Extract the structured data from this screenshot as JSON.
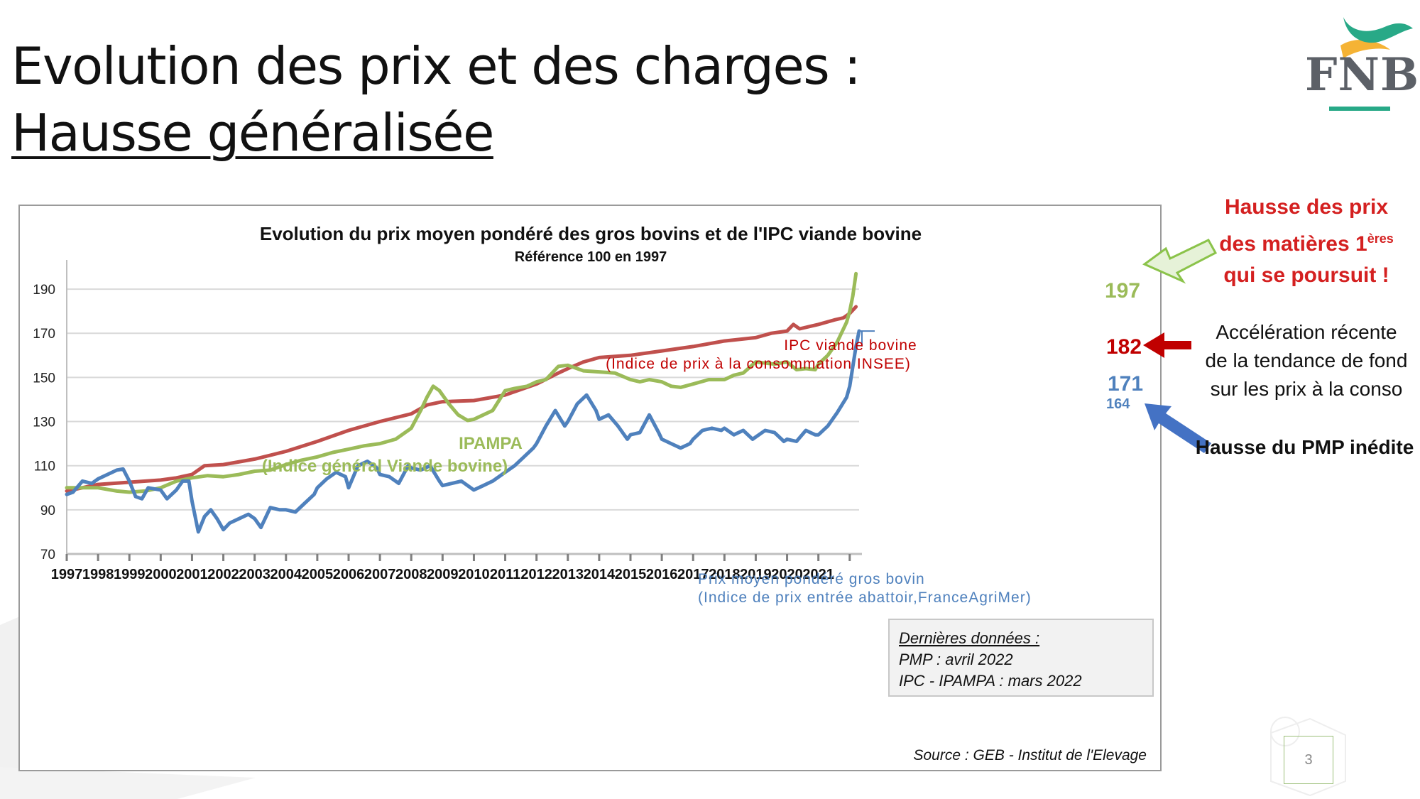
{
  "slide": {
    "title_line1": "Evolution des prix et des charges :",
    "title_line2": "Hausse généralisée",
    "logo_text": "FNB",
    "page_number": "3"
  },
  "annotations": {
    "red_line1": "Hausse des prix",
    "red_line2_prefix": "des matières 1",
    "red_line2_sup": "ères",
    "red_line3": "qui se poursuit !",
    "black_line1": "Accélération récente",
    "black_line2": "de la tendance de fond",
    "black_line3": "sur les prix à la conso",
    "pmp": "Hausse du PMP inédite"
  },
  "colors": {
    "ipc": "#c0504d",
    "ipampa": "#9bbb59",
    "pmp": "#4f81bd",
    "arrow_red": "#c00000",
    "arrow_green_fill": "#e6f2d8",
    "arrow_green_stroke": "#8bc34a",
    "arrow_blue": "#4472c4",
    "annotation_red": "#d42020",
    "logo_green": "#28a987",
    "logo_orange": "#f5b335"
  },
  "chart_data": {
    "type": "line",
    "title": "Evolution du prix moyen pondéré des gros bovins et de l'IPC viande bovine",
    "subtitle": "Référence 100 en 1997",
    "x_tick_labels": [
      "1997",
      "1998",
      "1999",
      "2000",
      "2001",
      "2002",
      "2003",
      "2004",
      "2005",
      "2006",
      "2007",
      "2008",
      "2009",
      "2010",
      "2011",
      "2012",
      "2013",
      "2014",
      "2015",
      "2016",
      "2017",
      "2018",
      "2019",
      "2020",
      "2021"
    ],
    "y_ticks": [
      70,
      90,
      110,
      130,
      150,
      170,
      190
    ],
    "xlim": [
      1997.0,
      2022.3
    ],
    "ylim": [
      70,
      200
    ],
    "grid": true,
    "series": [
      {
        "name": "IPC viande bovine",
        "label_line1": "IPC viande bovine",
        "label_line2": "(Indice de prix à la consommation INSEE)",
        "color": "#c0504d",
        "end_value": "182",
        "points": [
          [
            1997.0,
            98.5
          ],
          [
            1998.0,
            101.5
          ],
          [
            1999.0,
            102.5
          ],
          [
            2000.0,
            103.5
          ],
          [
            2000.5,
            104.5
          ],
          [
            2001.0,
            106
          ],
          [
            2001.4,
            110
          ],
          [
            2002.0,
            110.5
          ],
          [
            2003.0,
            113
          ],
          [
            2004.0,
            116.5
          ],
          [
            2005.0,
            121
          ],
          [
            2006.0,
            126
          ],
          [
            2007.0,
            130
          ],
          [
            2008.0,
            133.5
          ],
          [
            2008.5,
            137.5
          ],
          [
            2009.0,
            139
          ],
          [
            2010.0,
            139.5
          ],
          [
            2011.0,
            142
          ],
          [
            2012.0,
            147
          ],
          [
            2012.7,
            152
          ],
          [
            2013.0,
            154
          ],
          [
            2013.5,
            157
          ],
          [
            2014.0,
            159
          ],
          [
            2015.0,
            160
          ],
          [
            2016.0,
            162
          ],
          [
            2017.0,
            164
          ],
          [
            2018.0,
            166.5
          ],
          [
            2019.0,
            168
          ],
          [
            2019.5,
            170
          ],
          [
            2020.0,
            171
          ],
          [
            2020.2,
            174
          ],
          [
            2020.4,
            172
          ],
          [
            2021.0,
            174
          ],
          [
            2021.5,
            176
          ],
          [
            2021.8,
            177
          ],
          [
            2022.0,
            179
          ],
          [
            2022.2,
            182
          ]
        ]
      },
      {
        "name": "IPAMPA",
        "label_line1": "IPAMPA",
        "label_line2": "(Indice général Viande bovine)",
        "color": "#9bbb59",
        "end_value": "197",
        "points": [
          [
            1997.0,
            100
          ],
          [
            1998.0,
            100
          ],
          [
            1998.6,
            98.5
          ],
          [
            1999.0,
            98
          ],
          [
            1999.5,
            98.5
          ],
          [
            2000.0,
            100
          ],
          [
            2000.5,
            103
          ],
          [
            2001.0,
            104.5
          ],
          [
            2001.5,
            105.5
          ],
          [
            2002.0,
            105
          ],
          [
            2002.5,
            106
          ],
          [
            2003.0,
            107.5
          ],
          [
            2003.5,
            108
          ],
          [
            2004.0,
            110.5
          ],
          [
            2004.5,
            112.5
          ],
          [
            2005.0,
            114
          ],
          [
            2005.5,
            116
          ],
          [
            2006.0,
            117.5
          ],
          [
            2006.5,
            119
          ],
          [
            2007.0,
            120
          ],
          [
            2007.5,
            122
          ],
          [
            2008.0,
            127
          ],
          [
            2008.3,
            135
          ],
          [
            2008.5,
            141
          ],
          [
            2008.7,
            146
          ],
          [
            2008.9,
            144
          ],
          [
            2009.2,
            138
          ],
          [
            2009.5,
            133
          ],
          [
            2009.8,
            130.5
          ],
          [
            2010.0,
            131
          ],
          [
            2010.3,
            133
          ],
          [
            2010.6,
            135
          ],
          [
            2011.0,
            144
          ],
          [
            2011.3,
            145
          ],
          [
            2011.7,
            146
          ],
          [
            2012.0,
            148
          ],
          [
            2012.3,
            149
          ],
          [
            2012.7,
            155
          ],
          [
            2013.0,
            155.5
          ],
          [
            2013.5,
            153
          ],
          [
            2014.0,
            152.5
          ],
          [
            2014.5,
            152
          ],
          [
            2015.0,
            149
          ],
          [
            2015.3,
            148
          ],
          [
            2015.6,
            149
          ],
          [
            2016.0,
            148
          ],
          [
            2016.3,
            146
          ],
          [
            2016.6,
            145.5
          ],
          [
            2017.0,
            147
          ],
          [
            2017.5,
            149
          ],
          [
            2018.0,
            149
          ],
          [
            2018.3,
            151
          ],
          [
            2018.6,
            152
          ],
          [
            2019.0,
            157
          ],
          [
            2019.3,
            156.5
          ],
          [
            2019.6,
            156
          ],
          [
            2020.0,
            157
          ],
          [
            2020.3,
            153.5
          ],
          [
            2020.6,
            154
          ],
          [
            2020.9,
            153.5
          ],
          [
            2021.0,
            156
          ],
          [
            2021.3,
            160
          ],
          [
            2021.6,
            166
          ],
          [
            2021.9,
            175
          ],
          [
            2022.0,
            180
          ],
          [
            2022.1,
            187
          ],
          [
            2022.2,
            197
          ]
        ]
      },
      {
        "name": "Prix moyen pondéré gros bovin",
        "label_line1": "Prix moyen pondéré gros bovin",
        "label_line2": "(Indice de prix entrée abattoir,FranceAgriMer)",
        "color": "#4f81bd",
        "end_value": "171",
        "secondary_value": "164",
        "points": [
          [
            1997.0,
            97
          ],
          [
            1997.2,
            98
          ],
          [
            1997.5,
            103
          ],
          [
            1997.8,
            102
          ],
          [
            1998.0,
            104
          ],
          [
            1998.3,
            106
          ],
          [
            1998.6,
            108
          ],
          [
            1998.8,
            108.5
          ],
          [
            1999.0,
            103
          ],
          [
            1999.2,
            96
          ],
          [
            1999.4,
            95
          ],
          [
            1999.6,
            100
          ],
          [
            2000.0,
            99
          ],
          [
            2000.2,
            95
          ],
          [
            2000.5,
            99
          ],
          [
            2000.7,
            103
          ],
          [
            2000.9,
            103
          ],
          [
            2001.0,
            94
          ],
          [
            2001.2,
            80
          ],
          [
            2001.4,
            87
          ],
          [
            2001.6,
            90
          ],
          [
            2001.8,
            86
          ],
          [
            2002.0,
            81
          ],
          [
            2002.2,
            84
          ],
          [
            2002.5,
            86
          ],
          [
            2002.8,
            88
          ],
          [
            2003.0,
            86
          ],
          [
            2003.2,
            82
          ],
          [
            2003.5,
            91
          ],
          [
            2003.8,
            90
          ],
          [
            2004.0,
            90
          ],
          [
            2004.3,
            89
          ],
          [
            2004.6,
            93
          ],
          [
            2004.9,
            97
          ],
          [
            2005.0,
            100
          ],
          [
            2005.3,
            104
          ],
          [
            2005.6,
            107
          ],
          [
            2005.9,
            105
          ],
          [
            2006.0,
            100
          ],
          [
            2006.3,
            110
          ],
          [
            2006.6,
            112
          ],
          [
            2006.9,
            109
          ],
          [
            2007.0,
            106
          ],
          [
            2007.3,
            105
          ],
          [
            2007.6,
            102
          ],
          [
            2007.9,
            110
          ],
          [
            2008.0,
            109
          ],
          [
            2008.3,
            108
          ],
          [
            2008.6,
            110
          ],
          [
            2008.9,
            103
          ],
          [
            2009.0,
            101
          ],
          [
            2009.3,
            102
          ],
          [
            2009.6,
            103
          ],
          [
            2009.9,
            100
          ],
          [
            2010.0,
            99
          ],
          [
            2010.3,
            101
          ],
          [
            2010.6,
            103
          ],
          [
            2010.9,
            106
          ],
          [
            2011.0,
            107
          ],
          [
            2011.3,
            110
          ],
          [
            2011.6,
            114
          ],
          [
            2011.9,
            118
          ],
          [
            2012.0,
            120
          ],
          [
            2012.3,
            128
          ],
          [
            2012.6,
            135
          ],
          [
            2012.9,
            128
          ],
          [
            2013.0,
            130
          ],
          [
            2013.3,
            138
          ],
          [
            2013.6,
            142
          ],
          [
            2013.9,
            135
          ],
          [
            2014.0,
            131
          ],
          [
            2014.3,
            133
          ],
          [
            2014.6,
            128
          ],
          [
            2014.9,
            122
          ],
          [
            2015.0,
            124
          ],
          [
            2015.3,
            125
          ],
          [
            2015.6,
            133
          ],
          [
            2015.9,
            125
          ],
          [
            2016.0,
            122
          ],
          [
            2016.3,
            120
          ],
          [
            2016.6,
            118
          ],
          [
            2016.9,
            120
          ],
          [
            2017.0,
            122
          ],
          [
            2017.3,
            126
          ],
          [
            2017.6,
            127
          ],
          [
            2017.9,
            126
          ],
          [
            2018.0,
            127
          ],
          [
            2018.3,
            124
          ],
          [
            2018.6,
            126
          ],
          [
            2018.9,
            122
          ],
          [
            2019.0,
            123
          ],
          [
            2019.3,
            126
          ],
          [
            2019.6,
            125
          ],
          [
            2019.9,
            121
          ],
          [
            2020.0,
            122
          ],
          [
            2020.3,
            121
          ],
          [
            2020.6,
            126
          ],
          [
            2020.9,
            124
          ],
          [
            2021.0,
            124
          ],
          [
            2021.3,
            128
          ],
          [
            2021.6,
            134
          ],
          [
            2021.9,
            141
          ],
          [
            2022.0,
            146
          ],
          [
            2022.1,
            155
          ],
          [
            2022.2,
            164
          ],
          [
            2022.3,
            171
          ]
        ]
      }
    ],
    "note_title": "Dernières données :",
    "note_line1": "PMP : avril 2022",
    "note_line2": "IPC - IPAMPA : mars 2022",
    "source": "Source : GEB - Institut de l'Elevage"
  }
}
